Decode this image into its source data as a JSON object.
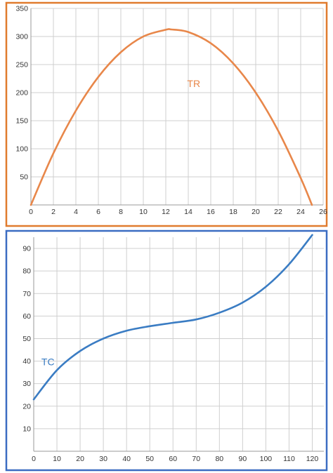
{
  "chart_data": [
    {
      "type": "line",
      "title": "",
      "xlabel": "",
      "ylabel": "",
      "xlim": [
        0,
        26
      ],
      "ylim": [
        0,
        350
      ],
      "xticks": [
        0,
        2,
        4,
        6,
        8,
        10,
        12,
        14,
        16,
        18,
        20,
        22,
        24,
        26
      ],
      "yticks": [
        50,
        100,
        150,
        200,
        250,
        300,
        350
      ],
      "x_tick_labels": [
        "0",
        "2",
        "4",
        "6",
        "8",
        "10",
        "12",
        "14",
        "16",
        "18",
        "20",
        "22",
        "24",
        "26"
      ],
      "y_tick_labels": [
        "50",
        "100",
        "150",
        "200",
        "250",
        "300",
        "350"
      ],
      "grid": true,
      "frame_color": "#e07b2e",
      "series": [
        {
          "name": "TR",
          "color": "#e8874a",
          "x": [
            0,
            2,
            4,
            6,
            8,
            10,
            12,
            12.5,
            14,
            16,
            18,
            20,
            22,
            24,
            25
          ],
          "y": [
            0,
            92,
            168,
            228,
            272,
            300,
            312,
            312.5,
            308,
            288,
            252,
            200,
            132,
            48,
            0
          ]
        }
      ]
    },
    {
      "type": "line",
      "title": "",
      "xlabel": "",
      "ylabel": "",
      "xlim": [
        0,
        125
      ],
      "ylim": [
        0,
        95
      ],
      "xticks": [
        0,
        10,
        20,
        30,
        40,
        50,
        60,
        70,
        80,
        90,
        100,
        110,
        120
      ],
      "yticks": [
        10,
        20,
        30,
        40,
        50,
        60,
        70,
        80,
        90
      ],
      "x_tick_labels": [
        "0",
        "10",
        "20",
        "30",
        "40",
        "50",
        "60",
        "70",
        "80",
        "90",
        "100",
        "110",
        "120"
      ],
      "y_tick_labels": [
        "10",
        "20",
        "30",
        "40",
        "50",
        "60",
        "70",
        "80",
        "90"
      ],
      "grid": true,
      "frame_color": "#3b6cc2",
      "series": [
        {
          "name": "TC",
          "color": "#3a7cc3",
          "x": [
            0,
            10,
            20,
            30,
            40,
            50,
            60,
            70,
            80,
            90,
            100,
            110,
            120
          ],
          "y": [
            23,
            36,
            44.5,
            50,
            53.5,
            55.5,
            57,
            58.5,
            61.5,
            66,
            73,
            83,
            96
          ]
        }
      ]
    }
  ]
}
